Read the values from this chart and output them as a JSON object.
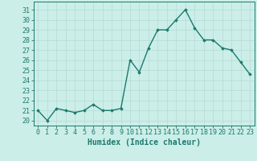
{
  "x": [
    0,
    1,
    2,
    3,
    4,
    5,
    6,
    7,
    8,
    9,
    10,
    11,
    12,
    13,
    14,
    15,
    16,
    17,
    18,
    19,
    20,
    21,
    22,
    23
  ],
  "y": [
    21.0,
    20.0,
    21.2,
    21.0,
    20.8,
    21.0,
    21.6,
    21.0,
    21.0,
    21.2,
    26.0,
    24.8,
    27.2,
    29.0,
    29.0,
    30.0,
    31.0,
    29.2,
    28.0,
    28.0,
    27.2,
    27.0,
    25.8,
    24.6
  ],
  "line_color": "#1a7a6e",
  "marker": "D",
  "marker_size": 1.8,
  "linewidth": 1.0,
  "xlabel": "Humidex (Indice chaleur)",
  "ylabel_ticks": [
    20,
    21,
    22,
    23,
    24,
    25,
    26,
    27,
    28,
    29,
    30,
    31
  ],
  "ylim": [
    19.5,
    31.8
  ],
  "xlim": [
    -0.5,
    23.5
  ],
  "bg_color": "#cceee8",
  "grid_color": "#b8ddd8",
  "xlabel_fontsize": 7.0,
  "tick_fontsize": 6.0
}
